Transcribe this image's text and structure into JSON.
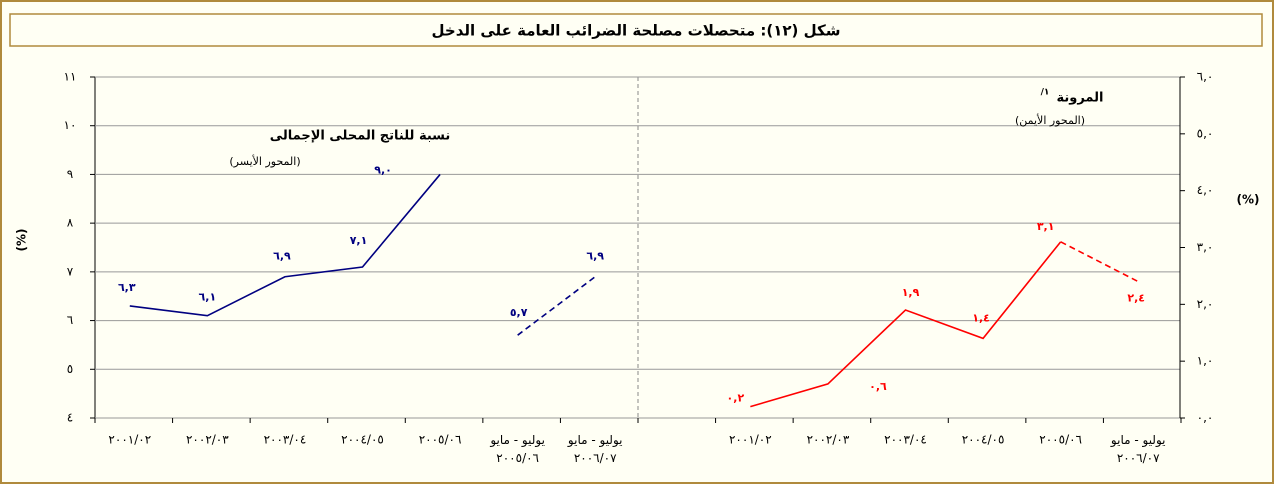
{
  "title": "شكل (١٢): متحصلات مصلحة الضرائب العامة على الدخل",
  "chart_data": [
    {
      "type": "line",
      "y_axis_label": "(%)",
      "annotation": "نسبة للناتج المحلى الإجمالى",
      "annotation_note": "(المحور الأيسر)",
      "categories": [
        "٢٠٠١/٠٢",
        "٢٠٠٢/٠٣",
        "٢٠٠٣/٠٤",
        "٢٠٠٤/٠٥",
        "٢٠٠٥/٠٦",
        "يوليو - مايو\n٢٠٠٥/٠٦",
        "يوليو - مايو\n٢٠٠٦/٠٧"
      ],
      "series": [
        {
          "color": "#000080",
          "dashed": false,
          "values": [
            6.3,
            6.1,
            6.9,
            7.1,
            9.0,
            null,
            null
          ],
          "value_labels": [
            "٦,٣",
            "٦,١",
            "٦,٩",
            "٧,١",
            "٩,٠",
            null,
            null
          ]
        },
        {
          "color": "#000080",
          "dashed": true,
          "values": [
            null,
            null,
            null,
            null,
            null,
            5.7,
            6.9
          ],
          "value_labels": [
            null,
            null,
            null,
            null,
            null,
            "٥,٧",
            "٦,٩"
          ]
        }
      ],
      "ylim": [
        4,
        11
      ],
      "yticks": [
        {
          "value": 4,
          "label": "٤"
        },
        {
          "value": 5,
          "label": "٥"
        },
        {
          "value": 6,
          "label": "٦"
        },
        {
          "value": 7,
          "label": "٧"
        },
        {
          "value": 8,
          "label": "٨"
        },
        {
          "value": 9,
          "label": "٩"
        },
        {
          "value": 10,
          "label": "١٠"
        },
        {
          "value": 11,
          "label": "١١"
        }
      ],
      "grid": true,
      "axis_side": "left"
    },
    {
      "type": "line",
      "y_axis_label": "(%)",
      "annotation": "المرونة",
      "annotation_sup": "١/",
      "annotation_note": "(المحور الأيمن)",
      "categories": [
        "٢٠٠١/٠٢",
        "٢٠٠٢/٠٣",
        "٢٠٠٣/٠٤",
        "٢٠٠٤/٠٥",
        "٢٠٠٥/٠٦",
        "يوليو - مايو\n٢٠٠٦/٠٧"
      ],
      "series": [
        {
          "color": "#ff0000",
          "dashed": false,
          "values": [
            0.2,
            0.6,
            1.9,
            1.4,
            3.1,
            null
          ],
          "value_labels": [
            "٠,٢",
            "٠,٦",
            "١,٩",
            "١,٤",
            "٣,١",
            null
          ]
        },
        {
          "color": "#ff0000",
          "dashed": true,
          "values": [
            null,
            null,
            null,
            null,
            3.1,
            2.4
          ],
          "value_labels": [
            null,
            null,
            null,
            null,
            null,
            "٢,٤"
          ]
        }
      ],
      "ylim": [
        0,
        6
      ],
      "yticks": [
        {
          "value": 0,
          "label": "٠,٠"
        },
        {
          "value": 1,
          "label": "١,٠"
        },
        {
          "value": 2,
          "label": "٢,٠"
        },
        {
          "value": 3,
          "label": "٣,٠"
        },
        {
          "value": 4,
          "label": "٤,٠"
        },
        {
          "value": 5,
          "label": "٥,٠"
        },
        {
          "value": 6,
          "label": "٦,٠"
        }
      ],
      "grid": false,
      "axis_side": "right"
    }
  ]
}
